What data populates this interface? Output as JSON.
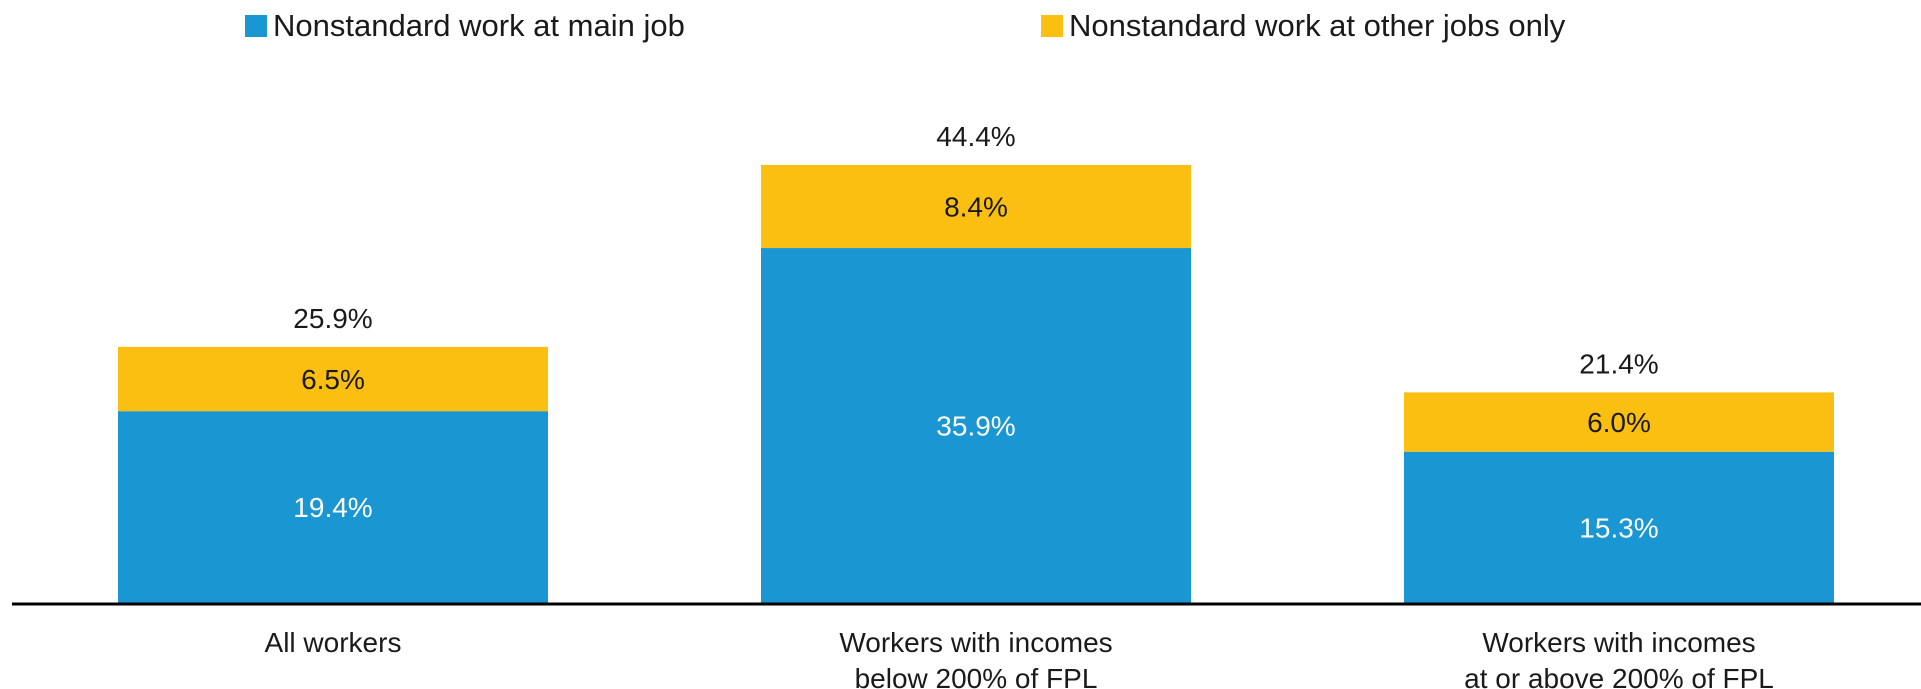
{
  "chart_data": {
    "type": "bar",
    "stacked": true,
    "categories": [
      [
        "All workers"
      ],
      [
        "Workers with incomes",
        "below 200% of FPL"
      ],
      [
        "Workers with incomes",
        "at or above 200% of FPL"
      ]
    ],
    "series": [
      {
        "name": "Nonstandard work at main job",
        "color": "#1a96d2",
        "values": [
          19.4,
          35.9,
          15.3
        ],
        "labels": [
          "19.4%",
          "35.9%",
          "15.3%"
        ]
      },
      {
        "name": "Nonstandard work at other jobs only",
        "color": "#fbbf12",
        "values": [
          6.5,
          8.4,
          6.0
        ],
        "labels": [
          "6.5%",
          "8.4%",
          "6.0%"
        ]
      }
    ],
    "totals": [
      25.9,
      44.4,
      21.4
    ],
    "total_labels": [
      "25.9%",
      "44.4%",
      "21.4%"
    ],
    "legend_position": "top",
    "grid": false,
    "ylim": [
      0,
      44.4
    ]
  }
}
